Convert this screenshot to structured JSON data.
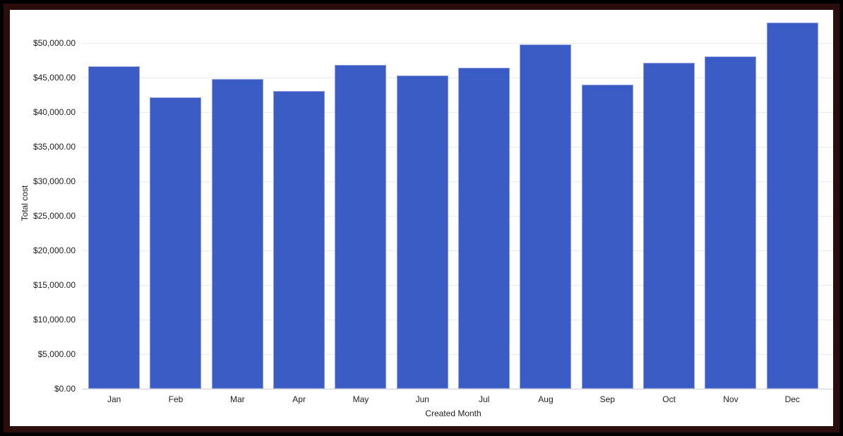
{
  "frame": {
    "outer_color": "#000000",
    "border_color": "#2b0d0d",
    "card_color": "#ffffff"
  },
  "chart_data": {
    "type": "bar",
    "title": "",
    "categories": [
      "Jan",
      "Feb",
      "Mar",
      "Apr",
      "May",
      "Jun",
      "Jul",
      "Aug",
      "Sep",
      "Oct",
      "Nov",
      "Dec"
    ],
    "values": [
      46600,
      42100,
      44800,
      43100,
      46800,
      45300,
      46400,
      49800,
      44000,
      47100,
      48100,
      53000
    ],
    "xlabel": "Created Month",
    "ylabel": "Total cost",
    "ylim": [
      0,
      53800
    ],
    "ytick_step": 5000,
    "ytick_labels": [
      "$0.00",
      "$5,000.00",
      "$10,000.00",
      "$15,000.00",
      "$20,000.00",
      "$25,000.00",
      "$30,000.00",
      "$35,000.00",
      "$40,000.00",
      "$45,000.00",
      "$50,000.00"
    ],
    "grid": true,
    "legend": "none",
    "colors": {
      "bar": "#3a5cc4",
      "bar_edge": "#8fa1d8",
      "gridline": "#e9e9e9",
      "baseline": "#c9cdd2",
      "tick_text": "#202124",
      "axis_title_text": "#1f1f1f"
    }
  }
}
